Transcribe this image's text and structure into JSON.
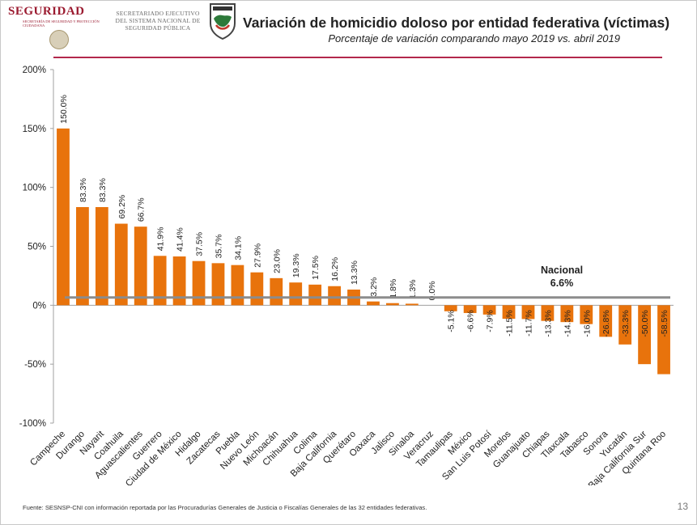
{
  "header": {
    "brand": "SEGURIDAD",
    "brand_subtitle": "SECRETARÍA DE SEGURIDAD Y PROTECCIÓN CIUDADANA",
    "agency": "SECRETARIADO EJECUTIVO DEL SISTEMA NACIONAL DE SEGURIDAD PÚBLICA",
    "title": "Variación de homicidio doloso por entidad federativa (víctimas)",
    "subtitle": "Porcentaje de variación comparando mayo 2019 vs. abril 2019"
  },
  "chart_data": {
    "type": "bar",
    "title": "Variación de homicidio doloso por entidad federativa (víctimas)",
    "subtitle": "Porcentaje de variación comparando mayo 2019 vs. abril 2019",
    "xlabel": "",
    "ylabel": "",
    "ylim": [
      -100,
      200
    ],
    "yticks": [
      -100,
      -50,
      0,
      50,
      100,
      150,
      200
    ],
    "ytick_labels": [
      "-100%",
      "-50%",
      "0%",
      "50%",
      "100%",
      "150%",
      "200%"
    ],
    "categories": [
      "Campeche",
      "Durango",
      "Nayarit",
      "Coahuila",
      "Aguascalientes",
      "Guerrero",
      "Ciudad de México",
      "Hidalgo",
      "Zacatecas",
      "Puebla",
      "Nuevo León",
      "Michoacán",
      "Chihuahua",
      "Colima",
      "Baja California",
      "Querétaro",
      "Oaxaca",
      "Jalisco",
      "Sinaloa",
      "Veracruz",
      "Tamaulipas",
      "México",
      "San Luis Potosí",
      "Morelos",
      "Guanajuato",
      "Chiapas",
      "Tlaxcala",
      "Tabasco",
      "Sonora",
      "Yucatán",
      "Baja California Sur",
      "Quintana Roo"
    ],
    "values": [
      150.0,
      83.3,
      83.3,
      69.2,
      66.7,
      41.9,
      41.4,
      37.5,
      35.7,
      34.1,
      27.9,
      23.0,
      19.3,
      17.5,
      16.2,
      13.3,
      3.2,
      1.8,
      1.3,
      0.0,
      -5.1,
      -6.6,
      -7.9,
      -11.5,
      -11.7,
      -13.3,
      -14.3,
      -16.0,
      -26.8,
      -33.3,
      -50.0,
      -58.5
    ],
    "data_labels": [
      "150.0%",
      "83.3%",
      "83.3%",
      "69.2%",
      "66.7%",
      "41.9%",
      "41.4%",
      "37.5%",
      "35.7%",
      "34.1%",
      "27.9%",
      "23.0%",
      "19.3%",
      "17.5%",
      "16.2%",
      "13.3%",
      "3.2%",
      "1.8%",
      "1.3%",
      "0.0%",
      "-5.1%",
      "-6.6%",
      "-7.9%",
      "-11.5%",
      "-11.7%",
      "-13.3%",
      "-14.3%",
      "-16.0%",
      "-26.8%",
      "-33.3%",
      "-50.0%",
      "-58.5%"
    ],
    "reference_line": {
      "label": "Nacional",
      "value": 6.6,
      "value_label": "6.6%"
    },
    "bar_color": "#e8730c",
    "reference_color": "#8c8c8c"
  },
  "footer": {
    "source": "Fuente: SESNSP-CNI con información reportada por las Procuradurías Generales de Justicia o Fiscalías Generales de las 32 entidades federativas.",
    "page": "13"
  },
  "colors": {
    "accent": "#b3284c",
    "brand": "#9b1b30"
  }
}
